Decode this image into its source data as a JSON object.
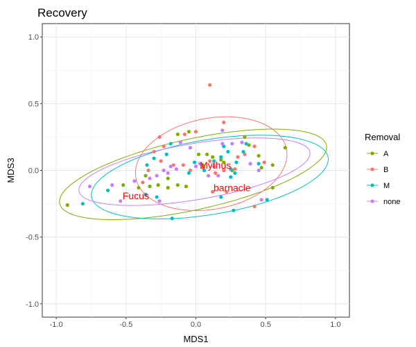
{
  "chart_data": {
    "type": "scatter",
    "title": "Recovery",
    "xlabel": "MDS1",
    "ylabel": "MDS3",
    "xlim": [
      -1.1,
      1.1
    ],
    "ylim": [
      -1.1,
      1.1
    ],
    "xticks": [
      -1.0,
      -0.5,
      0.0,
      0.5,
      1.0
    ],
    "yticks": [
      -1.0,
      -0.5,
      0.0,
      0.5,
      1.0
    ],
    "xtick_labels": [
      "-1.0",
      "-0.5",
      "0.0",
      "0.5",
      "1.0"
    ],
    "ytick_labels": [
      "-1.0",
      "-0.5",
      "0.0",
      "0.5",
      "1.0"
    ],
    "grid": true,
    "legend": {
      "title": "Removal",
      "position": "right"
    },
    "series": [
      {
        "name": "A",
        "color": "#7CAE00",
        "points": [
          [
            -0.92,
            -0.26
          ],
          [
            -0.36,
            -0.04
          ],
          [
            -0.52,
            -0.11
          ],
          [
            -0.41,
            -0.13
          ],
          [
            -0.33,
            -0.12
          ],
          [
            -0.27,
            -0.11
          ],
          [
            -0.2,
            -0.13
          ],
          [
            -0.13,
            -0.11
          ],
          [
            -0.07,
            -0.12
          ],
          [
            -0.2,
            -0.06
          ],
          [
            0.02,
            0.12
          ],
          [
            0.08,
            0.12
          ],
          [
            0.05,
            0.04
          ],
          [
            0.12,
            0.1
          ],
          [
            0.18,
            0.08
          ],
          [
            0.26,
            0.0
          ],
          [
            0.35,
            0.25
          ],
          [
            0.38,
            0.19
          ],
          [
            0.45,
            0.11
          ],
          [
            0.47,
            0.02
          ],
          [
            0.55,
            -0.13
          ],
          [
            0.55,
            0.04
          ],
          [
            0.64,
            0.17
          ],
          [
            -0.13,
            0.27
          ],
          [
            -0.05,
            0.29
          ],
          [
            0.2,
            0.06
          ]
        ]
      },
      {
        "name": "B",
        "color": "#F8766D",
        "points": [
          [
            0.1,
            0.64
          ],
          [
            0.2,
            0.36
          ],
          [
            0.0,
            0.29
          ],
          [
            -0.08,
            0.27
          ],
          [
            -0.26,
            0.25
          ],
          [
            -0.23,
            0.18
          ],
          [
            -0.3,
            0.14
          ],
          [
            -0.25,
            0.07
          ],
          [
            -0.16,
            0.04
          ],
          [
            -0.09,
            0.04
          ],
          [
            -0.04,
            0.0
          ],
          [
            0.05,
            0.02
          ],
          [
            0.1,
            0.07
          ],
          [
            0.14,
            -0.02
          ],
          [
            0.2,
            0.0
          ],
          [
            0.28,
            0.01
          ],
          [
            0.3,
            0.1
          ],
          [
            0.35,
            0.12
          ],
          [
            0.42,
            0.18
          ],
          [
            0.49,
            0.06
          ],
          [
            0.42,
            -0.27
          ],
          [
            0.12,
            -0.16
          ],
          [
            0.22,
            -0.16
          ],
          [
            -0.34,
            0.0
          ],
          [
            -0.38,
            -0.09
          ]
        ]
      },
      {
        "name": "M",
        "color": "#00BFC4",
        "points": [
          [
            -0.81,
            -0.25
          ],
          [
            -0.63,
            -0.15
          ],
          [
            -0.35,
            0.04
          ],
          [
            -0.3,
            0.09
          ],
          [
            -0.21,
            0.12
          ],
          [
            -0.18,
            0.2
          ],
          [
            -0.05,
            -0.02
          ],
          [
            -0.01,
            0.06
          ],
          [
            0.06,
            0.0
          ],
          [
            0.13,
            0.07
          ],
          [
            0.18,
            0.1
          ],
          [
            0.2,
            0.18
          ],
          [
            0.23,
            0.14
          ],
          [
            0.25,
            0.01
          ],
          [
            0.25,
            -0.05
          ],
          [
            0.28,
            -0.02
          ],
          [
            0.29,
            0.06
          ],
          [
            0.34,
            0.14
          ],
          [
            0.36,
            0.2
          ],
          [
            0.45,
            0.05
          ],
          [
            0.51,
            -0.22
          ],
          [
            0.27,
            -0.3
          ],
          [
            0.18,
            -0.2
          ],
          [
            -0.17,
            -0.36
          ],
          [
            -0.36,
            -0.18
          ],
          [
            -0.28,
            -0.2
          ]
        ]
      },
      {
        "name": "none",
        "color": "#C77CFF",
        "points": [
          [
            -0.76,
            -0.12
          ],
          [
            -0.6,
            -0.11
          ],
          [
            -0.54,
            -0.23
          ],
          [
            -0.44,
            -0.08
          ],
          [
            -0.33,
            -0.06
          ],
          [
            -0.28,
            -0.04
          ],
          [
            -0.23,
            0.0
          ],
          [
            -0.2,
            -0.02
          ],
          [
            -0.18,
            0.03
          ],
          [
            -0.14,
            0.01
          ],
          [
            -0.11,
            0.21
          ],
          [
            -0.04,
            0.17
          ],
          [
            0.0,
            0.03
          ],
          [
            0.03,
            0.05
          ],
          [
            0.09,
            -0.04
          ],
          [
            0.13,
            0.03
          ],
          [
            0.16,
            -0.04
          ],
          [
            0.19,
            0.2
          ],
          [
            0.19,
            0.3
          ],
          [
            0.26,
            0.2
          ],
          [
            0.33,
            0.21
          ],
          [
            0.39,
            0.05
          ],
          [
            0.45,
            0.0
          ],
          [
            0.47,
            -0.22
          ],
          [
            -0.26,
            -0.23
          ]
        ]
      }
    ],
    "ellipses": [
      {
        "series": "A",
        "cx": -0.02,
        "cy": -0.03,
        "rx": 0.98,
        "ry": 0.265,
        "rotation_deg": 13
      },
      {
        "series": "B",
        "cx": 0.11,
        "cy": 0.05,
        "rx": 0.55,
        "ry": 0.34,
        "rotation_deg": 12
      },
      {
        "series": "M",
        "cx": 0.1,
        "cy": -0.05,
        "rx": 0.86,
        "ry": 0.28,
        "rotation_deg": 10
      },
      {
        "series": "none",
        "cx": -0.01,
        "cy": -0.01,
        "rx": 0.84,
        "ry": 0.21,
        "rotation_deg": 10
      }
    ],
    "annotations": [
      {
        "text": "Mythus",
        "x": 0.14,
        "y": 0.04,
        "color": "#FF0000"
      },
      {
        "text": "barnacle",
        "x": 0.26,
        "y": -0.13,
        "color": "#FF0000"
      },
      {
        "text": "Fucus",
        "x": -0.43,
        "y": -0.19,
        "color": "#FF0000"
      }
    ]
  }
}
